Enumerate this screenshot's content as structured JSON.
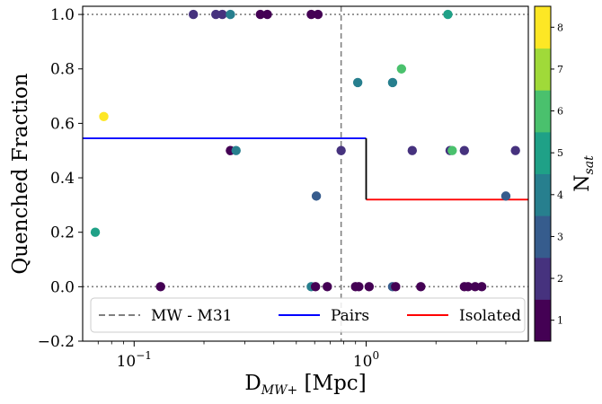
{
  "chart_data": {
    "type": "scatter",
    "xlabel": "D_{MW+} [Mpc]",
    "ylabel": "Quenched Fraction",
    "xscale": "log",
    "xlim": [
      0.06,
      5.0
    ],
    "ylim": [
      -0.2,
      1.03
    ],
    "xticks": [
      {
        "value": 0.1,
        "base": "10",
        "exp": "−1"
      },
      {
        "value": 1.0,
        "base": "10",
        "exp": "0"
      }
    ],
    "yticks": [
      -0.2,
      0.0,
      0.2,
      0.4,
      0.6,
      0.8,
      1.0
    ],
    "ytick_labels": [
      "−0.2",
      "0.0",
      "0.2",
      "0.4",
      "0.6",
      "0.8",
      "1.0"
    ],
    "hlines_dotted": [
      0.0,
      1.0
    ],
    "vline": {
      "x": 0.78,
      "label": "MW - M31",
      "color": "#808080",
      "style": "dashed"
    },
    "step_lines": [
      {
        "name": "Pairs",
        "color": "#0000ff",
        "x": [
          0.06,
          1.0
        ],
        "y": 0.545
      },
      {
        "name": "Isolated",
        "color": "#ff0000",
        "x": [
          1.0,
          5.0
        ],
        "y": 0.32
      },
      {
        "name": "",
        "color": "#000000",
        "x": [
          1.0,
          1.0
        ],
        "y": [
          0.32,
          0.545
        ]
      }
    ],
    "legend": {
      "placement": "bottom",
      "entries": [
        {
          "label": "MW - M31",
          "color": "#808080",
          "style": "dashed"
        },
        {
          "label": "Pairs",
          "color": "#0000ff",
          "style": "solid"
        },
        {
          "label": "Isolated",
          "color": "#ff0000",
          "style": "solid"
        }
      ]
    },
    "colorbar": {
      "label": "N_{sat}",
      "min": 0.5,
      "max": 8.5,
      "ticks": [
        1,
        2,
        3,
        4,
        5,
        6,
        7,
        8
      ],
      "colors": [
        "#440154",
        "#46327e",
        "#365c8d",
        "#277f8e",
        "#1fa187",
        "#4ac16d",
        "#a0da39",
        "#fde725"
      ]
    },
    "points": [
      {
        "x": 0.068,
        "y": 0.2,
        "n": 5
      },
      {
        "x": 0.074,
        "y": 0.625,
        "n": 8
      },
      {
        "x": 0.13,
        "y": 0.0,
        "n": 1
      },
      {
        "x": 0.18,
        "y": 1.0,
        "n": 2
      },
      {
        "x": 0.225,
        "y": 1.0,
        "n": 2
      },
      {
        "x": 0.24,
        "y": 1.0,
        "n": 2
      },
      {
        "x": 0.26,
        "y": 1.0,
        "n": 4
      },
      {
        "x": 0.26,
        "y": 0.5,
        "n": 1
      },
      {
        "x": 0.275,
        "y": 0.5,
        "n": 4
      },
      {
        "x": 0.35,
        "y": 1.0,
        "n": 1
      },
      {
        "x": 0.375,
        "y": 1.0,
        "n": 1
      },
      {
        "x": 0.58,
        "y": 1.0,
        "n": 1
      },
      {
        "x": 0.62,
        "y": 1.0,
        "n": 1
      },
      {
        "x": 0.58,
        "y": 0.0,
        "n": 4
      },
      {
        "x": 0.605,
        "y": 0.0,
        "n": 1
      },
      {
        "x": 0.68,
        "y": 0.0,
        "n": 1
      },
      {
        "x": 0.61,
        "y": 0.333,
        "n": 3
      },
      {
        "x": 0.78,
        "y": 0.5,
        "n": 2
      },
      {
        "x": 0.9,
        "y": 0.0,
        "n": 1
      },
      {
        "x": 0.93,
        "y": 0.0,
        "n": 1
      },
      {
        "x": 1.03,
        "y": 0.0,
        "n": 1
      },
      {
        "x": 0.92,
        "y": 0.75,
        "n": 4
      },
      {
        "x": 1.3,
        "y": 0.75,
        "n": 4
      },
      {
        "x": 1.42,
        "y": 0.8,
        "n": 6
      },
      {
        "x": 1.3,
        "y": 0.0,
        "n": 3
      },
      {
        "x": 1.34,
        "y": 0.0,
        "n": 1
      },
      {
        "x": 1.58,
        "y": 0.5,
        "n": 2
      },
      {
        "x": 1.72,
        "y": 0.0,
        "n": 1
      },
      {
        "x": 2.25,
        "y": 1.0,
        "n": 5
      },
      {
        "x": 2.3,
        "y": 0.5,
        "n": 2
      },
      {
        "x": 2.35,
        "y": 0.5,
        "n": 6
      },
      {
        "x": 2.65,
        "y": 0.5,
        "n": 2
      },
      {
        "x": 2.65,
        "y": 0.0,
        "n": 1
      },
      {
        "x": 2.75,
        "y": 0.0,
        "n": 1
      },
      {
        "x": 2.95,
        "y": 0.0,
        "n": 1
      },
      {
        "x": 3.15,
        "y": 0.0,
        "n": 1
      },
      {
        "x": 4.0,
        "y": 0.333,
        "n": 3
      },
      {
        "x": 4.4,
        "y": 0.5,
        "n": 2
      }
    ]
  }
}
